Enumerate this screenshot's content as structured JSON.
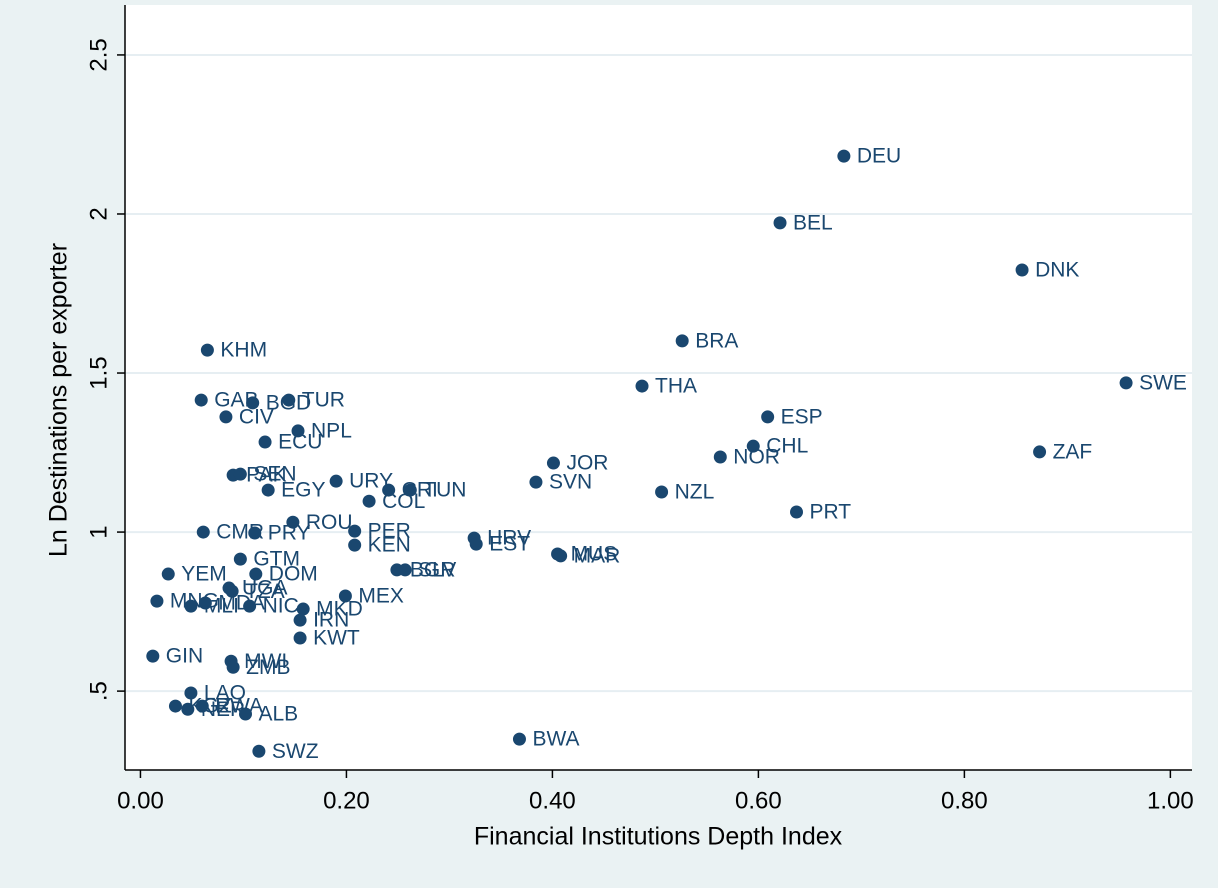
{
  "chart_data": {
    "type": "scatter",
    "x_label": "Financial Institutions Depth Index",
    "y_label": "Ln Destinations per exporter",
    "xlim": [
      -0.015,
      1.021
    ],
    "ylim": [
      0.252,
      2.657
    ],
    "xticks": [
      {
        "value": 0,
        "label": "0.00"
      },
      {
        "value": 0.2,
        "label": "0.20"
      },
      {
        "value": 0.4,
        "label": "0.40"
      },
      {
        "value": 0.6,
        "label": "0.60"
      },
      {
        "value": 0.8,
        "label": "0.80"
      },
      {
        "value": 1,
        "label": "1.00"
      }
    ],
    "yticks": [
      {
        "value": 0.5,
        "label": ".5"
      },
      1,
      1.5,
      2,
      2.5
    ],
    "grid": true,
    "color": "#1a476f",
    "point_labels": [
      "DEU",
      "BEL",
      "DNK",
      "BRA",
      "SWE",
      "THA",
      "ESP",
      "KHM",
      "GAB",
      "BGD",
      "TUR",
      "CIV",
      "NPL",
      "ECU",
      "CHL",
      "NOR",
      "ZAF",
      "JOR",
      "SVN",
      "NZL",
      "PRT",
      "PAK",
      "SEN",
      "EGY",
      "URY",
      "CRI",
      "TUN",
      "COL",
      "ROU",
      "PER",
      "KEN",
      "CMR",
      "PRY",
      "HRV",
      "EST",
      "MUS",
      "MAR",
      "GTM",
      "DOM",
      "YEM",
      "BGR",
      "SLV",
      "UGA",
      "TZA",
      "MEX",
      "MNG",
      "MLI",
      "MDA",
      "NIC",
      "MKD",
      "IRN",
      "KWT",
      "GIN",
      "MWI",
      "ZMB",
      "LAO",
      "KGZ",
      "NER",
      "RWA",
      "ALB",
      "SWZ",
      "BWA"
    ],
    "x": [
      0.683,
      0.621,
      0.856,
      0.526,
      0.957,
      0.487,
      0.609,
      0.065,
      0.059,
      0.109,
      0.144,
      0.083,
      0.153,
      0.121,
      0.595,
      0.563,
      0.873,
      0.401,
      0.384,
      0.506,
      0.637,
      0.09,
      0.097,
      0.124,
      0.19,
      0.241,
      0.262,
      0.222,
      0.148,
      0.208,
      0.208,
      0.061,
      0.111,
      0.324,
      0.326,
      0.405,
      0.408,
      0.097,
      0.112,
      0.027,
      0.249,
      0.257,
      0.086,
      0.089,
      0.199,
      0.016,
      0.049,
      0.063,
      0.106,
      0.158,
      0.155,
      0.155,
      0.012,
      0.088,
      0.09,
      0.049,
      0.034,
      0.046,
      0.06,
      0.102,
      0.115,
      0.368
    ],
    "values": [
      2.182,
      1.972,
      1.824,
      1.601,
      1.469,
      1.459,
      1.362,
      1.572,
      1.415,
      1.406,
      1.415,
      1.362,
      1.318,
      1.283,
      1.27,
      1.236,
      1.252,
      1.217,
      1.157,
      1.126,
      1.063,
      1.179,
      1.182,
      1.132,
      1.16,
      1.132,
      1.132,
      1.097,
      1.031,
      1.003,
      0.959,
      1.0,
      0.997,
      0.981,
      0.962,
      0.931,
      0.925,
      0.915,
      0.868,
      0.868,
      0.881,
      0.881,
      0.824,
      0.814,
      0.799,
      0.783,
      0.767,
      0.777,
      0.767,
      0.758,
      0.723,
      0.667,
      0.61,
      0.594,
      0.575,
      0.494,
      0.453,
      0.443,
      0.453,
      0.428,
      0.311,
      0.349
    ]
  }
}
